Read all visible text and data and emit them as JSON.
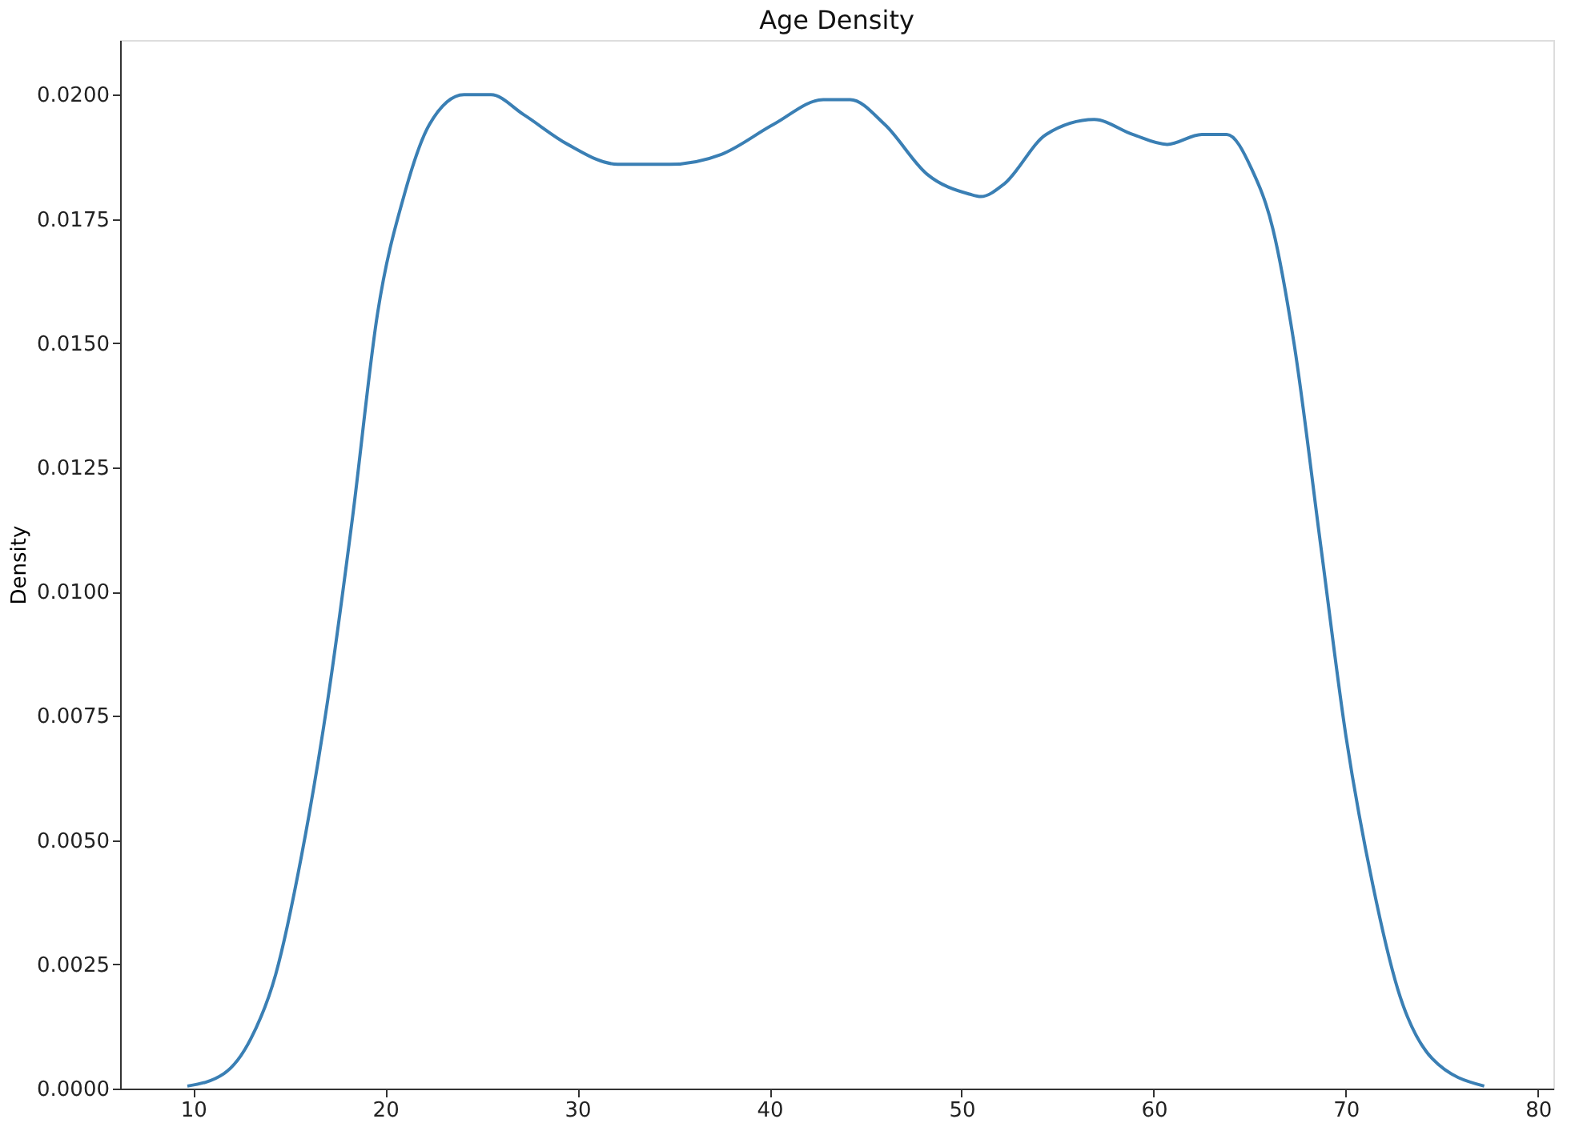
{
  "chart_data": {
    "type": "line",
    "title": "Age Density",
    "ylabel": "Density",
    "x": [
      9.7,
      11.6,
      13.0,
      14.3,
      15.65,
      17.0,
      18.3,
      19.6,
      21.0,
      22.3,
      24.1,
      25.5,
      27.2,
      29.5,
      32.1,
      34.8,
      37.5,
      40.2,
      42.8,
      44.2,
      46.0,
      48.2,
      50.4,
      51.0,
      52.2,
      54.4,
      56.9,
      58.9,
      60.7,
      62.5,
      63.8,
      65.1,
      66.2,
      67.3,
      68.7,
      70.0,
      71.4,
      72.7,
      74.5,
      77.2
    ],
    "series": [
      {
        "color": "#3a7fb4",
        "values": [
          5e-05,
          0.0003,
          0.001,
          0.0023,
          0.0047,
          0.0078,
          0.0115,
          0.0156,
          0.018,
          0.0194,
          0.02,
          0.02,
          0.0196,
          0.019,
          0.0186,
          0.0186,
          0.0188,
          0.0194,
          0.0199,
          0.0199,
          0.0194,
          0.0184,
          0.018,
          0.01795,
          0.0182,
          0.0192,
          0.0195,
          0.0192,
          0.019,
          0.0192,
          0.0192,
          0.0185,
          0.0173,
          0.015,
          0.0109,
          0.0071,
          0.0041,
          0.002,
          0.0006,
          5e-05
        ]
      }
    ],
    "xlim": [
      6.2,
      80.8
    ],
    "xticks": [
      10,
      20,
      30,
      40,
      50,
      60,
      70,
      80
    ],
    "ylim": [
      0,
      0.0211
    ],
    "yticks": [
      {
        "value": 0,
        "label": "0.0000"
      },
      {
        "value": 0.0025,
        "label": "0.0025"
      },
      {
        "value": 0.005,
        "label": "0.0050"
      },
      {
        "value": 0.0075,
        "label": "0.0075"
      },
      {
        "value": 0.01,
        "label": "0.0100"
      },
      {
        "value": 0.0125,
        "label": "0.0125"
      },
      {
        "value": 0.015,
        "label": "0.0150"
      },
      {
        "value": 0.0175,
        "label": "0.0175"
      },
      {
        "value": 0.02,
        "label": "0.0200"
      }
    ],
    "grid": false,
    "marker": "none",
    "line_style": "solid"
  }
}
